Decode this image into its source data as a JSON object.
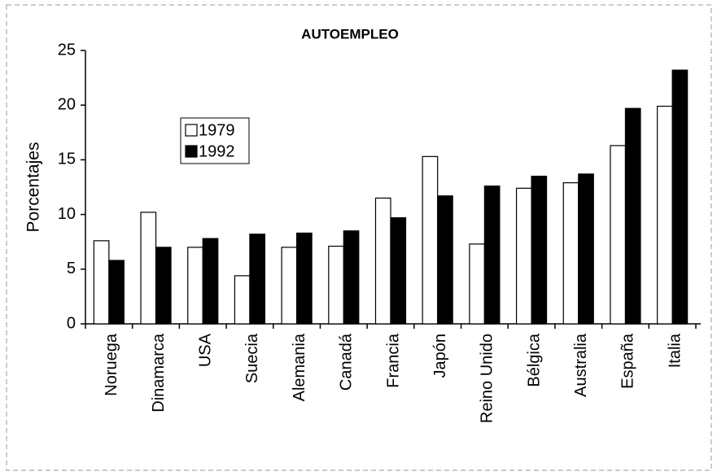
{
  "chart_data": {
    "type": "bar",
    "title": "AUTOEMPLEO",
    "y_label": "Porcentajes",
    "categories": [
      "Noruega",
      "Dinamarca",
      "USA",
      "Suecia",
      "Alemania",
      "Canadá",
      "Francia",
      "Japón",
      "Reino Unido",
      "Bélgica",
      "Australia",
      "España",
      "Italia"
    ],
    "series": [
      {
        "name": "1979",
        "color": "#ffffff",
        "values": [
          7.6,
          10.2,
          7.0,
          4.4,
          7.0,
          7.1,
          11.5,
          15.3,
          7.3,
          12.4,
          12.9,
          16.3,
          19.9
        ]
      },
      {
        "name": "1992",
        "color": "#000000",
        "values": [
          5.8,
          7.0,
          7.8,
          8.2,
          8.3,
          8.5,
          9.7,
          11.7,
          12.6,
          13.5,
          13.7,
          19.7,
          23.2
        ]
      }
    ],
    "ylim": [
      0,
      25
    ],
    "yticks": [
      0,
      5,
      10,
      15,
      20,
      25
    ],
    "grid": false
  }
}
